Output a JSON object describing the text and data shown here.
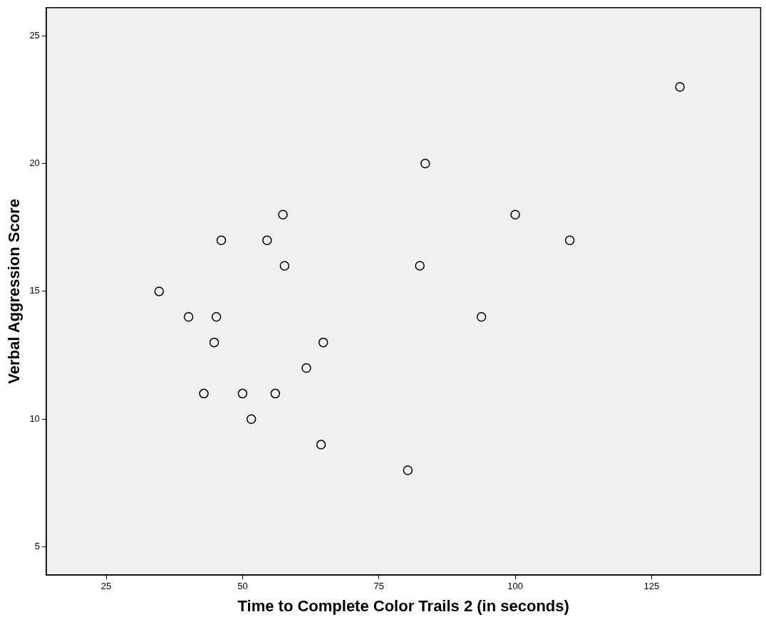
{
  "chart_data": {
    "type": "scatter",
    "xlabel": "Time to Complete Color Trails 2 (in seconds)",
    "ylabel": "Verbal Aggression Score",
    "xlim": [
      14,
      145
    ],
    "ylim": [
      3.9,
      26.1
    ],
    "xticks": [
      25,
      50,
      75,
      100,
      125
    ],
    "yticks": [
      5,
      10,
      15,
      20,
      25
    ],
    "grid": false,
    "legend": false,
    "marker": "circle",
    "series": [
      {
        "color": "#000000",
        "x": [
          130.2,
          83.5,
          57.4,
          100.0,
          46.1,
          54.5,
          110.0,
          57.7,
          82.5,
          34.7,
          40.1,
          45.2,
          93.8,
          44.8,
          64.8,
          61.7,
          42.9,
          50.0,
          56.0,
          51.6,
          64.4,
          80.3
        ],
        "values": [
          23,
          20,
          18,
          18,
          17,
          17,
          17,
          16,
          16,
          15,
          14,
          14,
          14,
          13,
          13,
          12,
          11,
          11,
          11,
          10,
          9,
          8
        ]
      }
    ]
  }
}
